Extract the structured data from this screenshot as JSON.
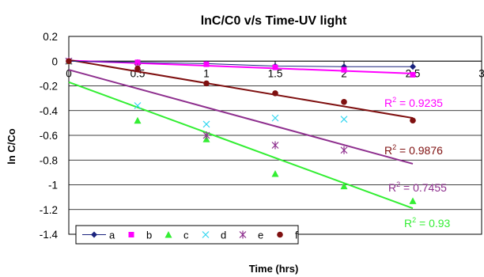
{
  "chart_data": {
    "type": "scatter",
    "title": "lnC/C0 v/s Time-UV light",
    "xlabel": "Time (hrs)",
    "ylabel": "ln C/Co",
    "xlim": [
      0,
      3
    ],
    "ylim": [
      -1.4,
      0.2
    ],
    "xticks": [
      "0",
      "0.5",
      "1",
      "1.5",
      "2",
      "2.5",
      "3"
    ],
    "yticks": [
      "0.2",
      "0",
      "-0.2",
      "-0.4",
      "-0.6",
      "-0.8",
      "-1",
      "-1.2",
      "-1.4"
    ],
    "legend_position": "bottom-left",
    "series": [
      {
        "name": "a",
        "color": "#1a237e",
        "marker": "diamond",
        "x": [
          0,
          0.5,
          1,
          1.5,
          2,
          2.5
        ],
        "y": [
          0,
          -0.01,
          -0.02,
          -0.04,
          -0.045,
          -0.045
        ],
        "connected": true
      },
      {
        "name": "b",
        "color": "#ff00ff",
        "marker": "square",
        "x": [
          0,
          0.5,
          1,
          1.5,
          2,
          2.5
        ],
        "y": [
          0,
          -0.01,
          -0.025,
          -0.05,
          -0.07,
          -0.11
        ],
        "trendline": {
          "x0": 0,
          "y0": 0.005,
          "x1": 2.5,
          "y1": -0.1
        },
        "r2_label": "= 0.9235"
      },
      {
        "name": "c",
        "color": "#33ee33",
        "marker": "triangle",
        "x": [
          0,
          0.5,
          1,
          1.5,
          2,
          2.5
        ],
        "y": [
          0,
          -0.48,
          -0.63,
          -0.91,
          -1.01,
          -1.13
        ],
        "trendline": {
          "x0": 0,
          "y0": -0.17,
          "x1": 2.5,
          "y1": -1.19
        },
        "r2_label": "= 0.93"
      },
      {
        "name": "d",
        "color": "#33d7f0",
        "marker": "x",
        "x": [
          0,
          0.5,
          1,
          1.5,
          2
        ],
        "y": [
          0,
          -0.36,
          -0.51,
          -0.46,
          -0.47
        ]
      },
      {
        "name": "e",
        "color": "#8e2f8e",
        "marker": "star",
        "x": [
          0,
          0.5,
          1,
          1.5,
          2
        ],
        "y": [
          0,
          -0.05,
          -0.6,
          -0.68,
          -0.72
        ],
        "trendline": {
          "x0": 0,
          "y0": -0.07,
          "x1": 2.5,
          "y1": -0.83
        },
        "r2_label": "= 0.7455"
      },
      {
        "name": "f",
        "color": "#7f1010",
        "marker": "circle",
        "x": [
          0,
          0.5,
          1,
          1.5,
          2,
          2.5
        ],
        "y": [
          0,
          -0.06,
          -0.18,
          -0.26,
          -0.33,
          -0.48
        ],
        "trendline": {
          "x0": 0,
          "y0": 0.01,
          "x1": 2.5,
          "y1": -0.46
        },
        "r2_label": "= 0.9876"
      }
    ]
  }
}
